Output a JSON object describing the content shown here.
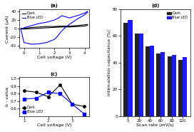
{
  "chart_data": [
    {
      "type": "line",
      "title": "(a)",
      "x_label": "Cell voltage (V)",
      "y_label": "Current (μA)",
      "series": [
        {
          "name": "Dark",
          "color": "black",
          "x": [
            -0.2,
            0.0,
            0.3,
            0.6,
            1.0,
            1.5,
            2.0,
            2.5,
            3.0,
            3.5,
            4.0,
            4.2,
            4.2,
            4.0,
            3.5,
            3.0,
            2.5,
            2.0,
            1.5,
            1.0,
            0.5,
            0.0,
            -0.2
          ],
          "values": [
            0,
            1,
            2,
            3,
            4,
            5,
            5,
            6,
            6,
            7,
            9,
            10,
            8,
            6,
            5,
            4,
            4,
            3,
            2,
            1,
            0,
            -1,
            0
          ]
        },
        {
          "name": "Blue LED",
          "color": "blue",
          "x": [
            -0.2,
            0.0,
            0.3,
            0.5,
            0.8,
            1.0,
            1.5,
            2.0,
            2.3,
            2.5,
            2.7,
            3.0,
            3.5,
            4.0,
            4.2,
            4.2,
            4.0,
            3.5,
            3.0,
            2.8,
            2.5,
            2.2,
            2.0,
            1.5,
            1.0,
            0.5,
            0.0,
            -0.2
          ],
          "values": [
            -2,
            2,
            5,
            7,
            10,
            12,
            15,
            20,
            25,
            30,
            28,
            25,
            30,
            36,
            40,
            38,
            32,
            22,
            10,
            5,
            -5,
            -18,
            -25,
            -32,
            -35,
            -36,
            -32,
            -2
          ]
        }
      ],
      "xlim": [
        -0.3,
        4.3
      ],
      "xticks": [
        0,
        1,
        2,
        3,
        4
      ],
      "ylim": [
        -45,
        45
      ],
      "yticks": [
        -40,
        -20,
        0,
        20,
        40
      ],
      "legend": "upper left"
    },
    {
      "type": "line",
      "title": "(c)",
      "x_label": "Cell voltage (V)",
      "y_label": "b - value",
      "series": [
        {
          "name": "Dark",
          "color": "black",
          "marker": "o",
          "x": [
            1.0,
            1.5,
            2.0,
            2.5,
            3.0,
            3.5
          ],
          "values": [
            0.84,
            0.82,
            0.76,
            0.92,
            0.66,
            0.63
          ]
        },
        {
          "name": "Blue LED",
          "color": "blue",
          "marker": "s",
          "x": [
            1.0,
            1.5,
            2.0,
            2.5,
            3.0,
            3.5
          ],
          "values": [
            0.73,
            0.74,
            0.82,
            0.8,
            0.66,
            0.53
          ]
        }
      ],
      "xlim": [
        0.8,
        3.7
      ],
      "xticks": [
        1,
        2,
        3
      ],
      "ylim": [
        0.5,
        1.02
      ],
      "yticks": [
        0.6,
        0.7,
        0.8,
        0.9,
        {
          "value": 1.0,
          "label": "1.0"
        }
      ],
      "legend": "lower left"
    },
    {
      "type": "bar",
      "title": "(d)",
      "x_label": "Scan rate (mV/s)",
      "y_label": "Intercalation capacitance (%)",
      "categories": [
        "5",
        "20",
        "40",
        "60",
        "80",
        "120"
      ],
      "series": [
        {
          "name": "Dark",
          "color": "#222222",
          "values": [
            70,
            62,
            52,
            47,
            45,
            42
          ]
        },
        {
          "name": "Blue LED",
          "color": "#1a1aff",
          "values": [
            72,
            62,
            53,
            48,
            46,
            44
          ]
        }
      ],
      "ylim": [
        0,
        80
      ],
      "yticks": [
        0,
        20,
        40,
        60,
        80
      ],
      "legend": "upper right"
    }
  ]
}
